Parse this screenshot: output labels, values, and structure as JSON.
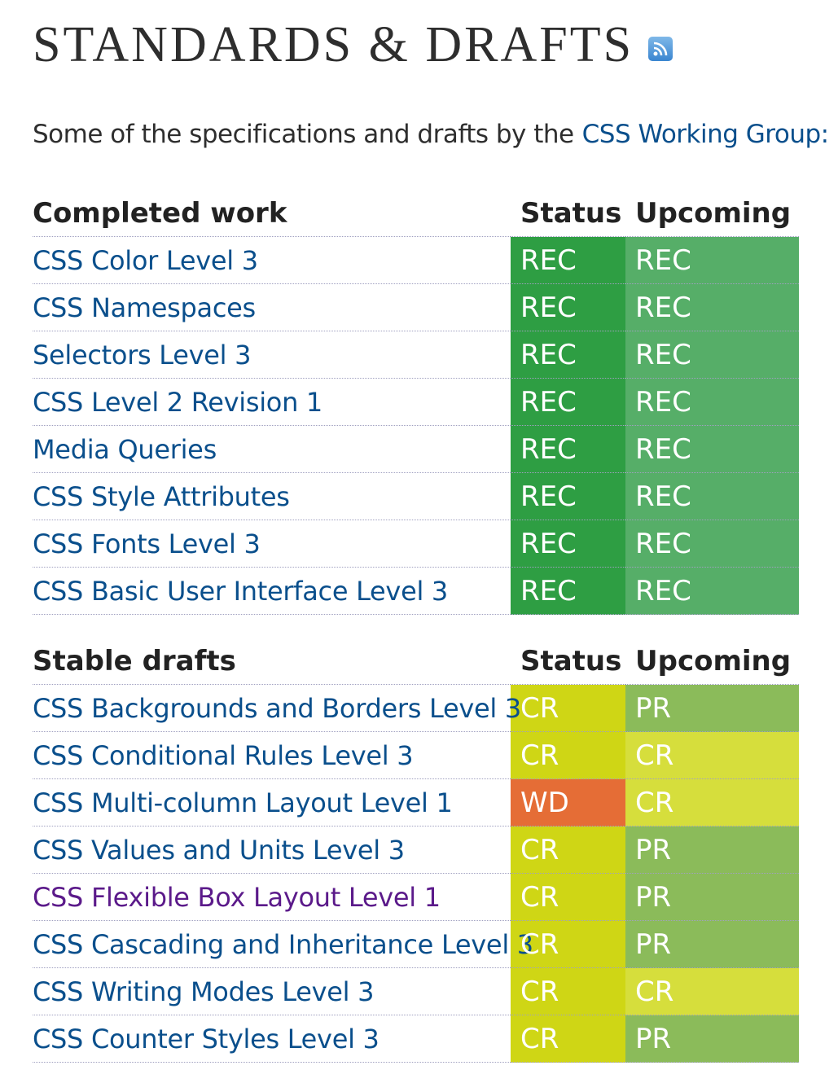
{
  "header": {
    "title": "STANDARDS & DRAFTS",
    "rss_icon": "rss-feed-icon"
  },
  "intro": {
    "text": "Some of the specifications and drafts by the",
    "link": "CSS Working Group:"
  },
  "completed": {
    "heading": "Completed work",
    "status_col": "Status",
    "upcoming_col": "Upcoming",
    "rows": [
      {
        "name": "CSS Color Level 3",
        "status": "REC",
        "upcoming": "REC"
      },
      {
        "name": "CSS Namespaces",
        "status": "REC",
        "upcoming": "REC"
      },
      {
        "name": "Selectors Level 3",
        "status": "REC",
        "upcoming": "REC"
      },
      {
        "name": "CSS Level 2 Revision 1",
        "status": "REC",
        "upcoming": "REC"
      },
      {
        "name": "Media Queries",
        "status": "REC",
        "upcoming": "REC"
      },
      {
        "name": "CSS Style Attributes",
        "status": "REC",
        "upcoming": "REC"
      },
      {
        "name": "CSS Fonts Level 3",
        "status": "REC",
        "upcoming": "REC"
      },
      {
        "name": "CSS Basic User Interface Level 3",
        "status": "REC",
        "upcoming": "REC"
      }
    ]
  },
  "stable": {
    "heading": "Stable drafts",
    "status_col": "Status",
    "upcoming_col": "Upcoming",
    "rows": [
      {
        "name": "CSS Backgrounds and Borders Level 3",
        "status": "CR",
        "upcoming": "PR"
      },
      {
        "name": "CSS Conditional Rules Level 3",
        "status": "CR",
        "upcoming": "CR"
      },
      {
        "name": "CSS Multi-column Layout Level 1",
        "status": "WD",
        "upcoming": "CR"
      },
      {
        "name": "CSS Values and Units Level 3",
        "status": "CR",
        "upcoming": "PR"
      },
      {
        "name": "CSS Flexible Box Layout Level 1",
        "status": "CR",
        "upcoming": "PR",
        "visited": true
      },
      {
        "name": "CSS Cascading and Inheritance Level 3",
        "status": "CR",
        "upcoming": "PR"
      },
      {
        "name": "CSS Writing Modes Level 3",
        "status": "CR",
        "upcoming": "CR"
      },
      {
        "name": "CSS Counter Styles Level 3",
        "status": "CR",
        "upcoming": "PR"
      }
    ]
  },
  "colors": {
    "REC_status": "#2e9e43",
    "REC_upcoming": "#56ae68",
    "CR_status": "#cfd615",
    "CR_upcoming": "#d6de3c",
    "PR": "#8bbb5a",
    "WD": "#e56d36",
    "link": "#0a4f8c",
    "visited_link": "#5b1a8a"
  }
}
